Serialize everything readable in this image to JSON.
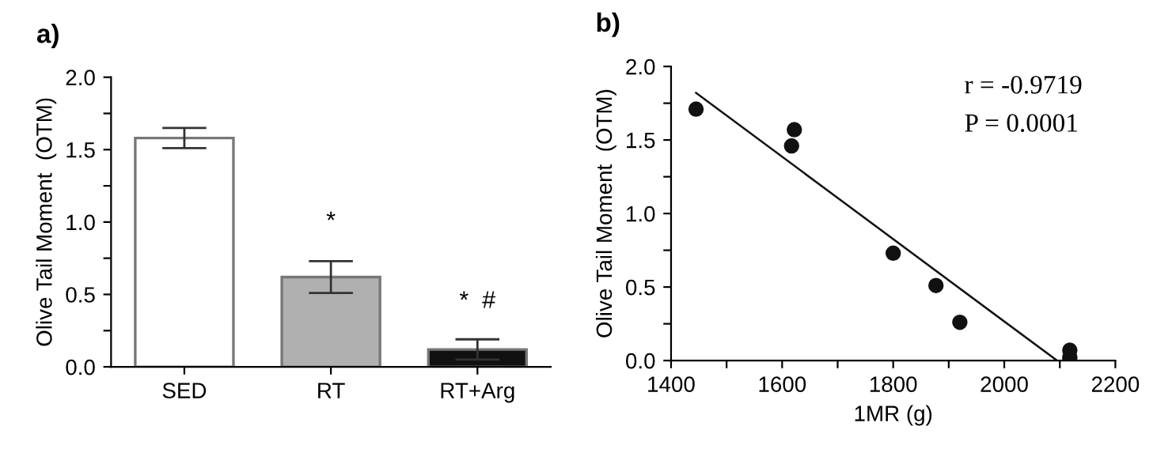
{
  "chart_data": [
    {
      "type": "bar",
      "title": "a)",
      "ylabel": "Olive Tail Moment  (OTM)",
      "categories": [
        "SED",
        "RT",
        "RT+Arg"
      ],
      "values": [
        1.58,
        0.62,
        0.12
      ],
      "errors": [
        0.07,
        0.11,
        0.07
      ],
      "colors": [
        "#ffffff",
        "#b0b0b0",
        "#111111"
      ],
      "ylim": [
        0,
        2
      ],
      "yticks": [
        {
          "value": 0,
          "label": "0.0"
        },
        {
          "value": 0.25,
          "label": null
        },
        {
          "value": 0.5,
          "label": "0.5"
        },
        {
          "value": 0.75,
          "label": null
        },
        {
          "value": 1,
          "label": "1.0"
        },
        {
          "value": 1.25,
          "label": null
        },
        {
          "value": 1.5,
          "label": "1.5"
        },
        {
          "value": 1.75,
          "label": null
        },
        {
          "value": 2,
          "label": "2.0"
        }
      ],
      "annotations": [
        "*",
        "*  #"
      ],
      "grid": false
    },
    {
      "type": "scatter",
      "title": "b)",
      "xlabel": "1MR (g)",
      "ylabel": "Olive Tail Moment  (OTM)",
      "series": [
        {
          "type": "scatter",
          "color": "#111111",
          "marker": "circle",
          "x": [
            1445,
            1617,
            1622,
            1800,
            1877,
            1920,
            2118,
            2118
          ],
          "values": [
            1.71,
            1.46,
            1.57,
            0.73,
            0.51,
            0.26,
            0.07,
            0.02
          ]
        },
        {
          "type": "line",
          "color": "#111111",
          "line_style": "solid",
          "x": [
            1445,
            2095
          ],
          "values": [
            1.82,
            0
          ]
        }
      ],
      "xlim": [
        1400,
        2200
      ],
      "xticks": [
        1400,
        {
          "value": 1500,
          "label": null
        },
        1600,
        {
          "value": 1700,
          "label": null
        },
        1800,
        {
          "value": 1900,
          "label": null
        },
        2000,
        {
          "value": 2100,
          "label": null
        },
        2200
      ],
      "ylim": [
        0,
        2
      ],
      "yticks": [
        {
          "value": 0,
          "label": "0.0"
        },
        {
          "value": 0.25,
          "label": null
        },
        {
          "value": 0.5,
          "label": "0.5"
        },
        {
          "value": 0.75,
          "label": null
        },
        {
          "value": 1,
          "label": "1.0"
        },
        {
          "value": 1.25,
          "label": null
        },
        {
          "value": 1.5,
          "label": "1.5"
        },
        {
          "value": 1.75,
          "label": null
        },
        {
          "value": 2,
          "label": "2.0"
        }
      ],
      "annotations": [
        "r = -0.9719",
        "P = 0.0001"
      ],
      "grid": false
    }
  ]
}
